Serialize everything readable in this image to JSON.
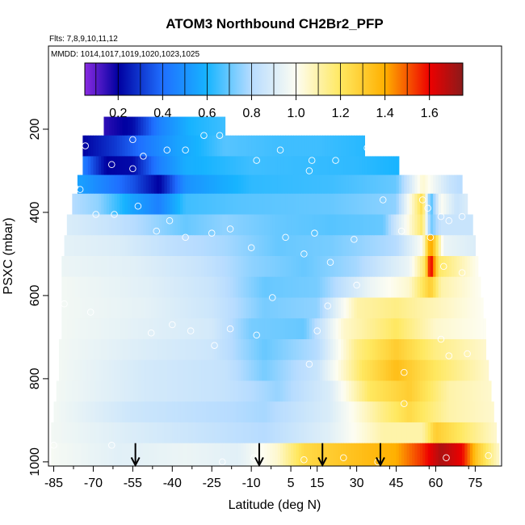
{
  "chart_data": {
    "type": "heatmap",
    "title": "ATOM3 Northbound CH2Br2_PFP",
    "flights_note": "Flts: 7,8,9,10,11,12",
    "dates_note": "MMDD: 1014,1017,1019,1020,1023,1025",
    "xlabel": "Latitude (deg N)",
    "ylabel": "PSXC (mbar)",
    "xlim": [
      -87,
      85
    ],
    "ylim": [
      1010,
      0
    ],
    "x_ticks": [
      -85,
      -70,
      -55,
      -40,
      -25,
      -10,
      5,
      15,
      30,
      45,
      60,
      75
    ],
    "x_tick_labels": [
      "-85",
      "-70",
      "-55",
      "-40",
      "-25",
      "-10",
      "5",
      "15",
      "30",
      "45",
      "60",
      "75"
    ],
    "y_ticks": [
      200,
      400,
      600,
      800,
      1000
    ],
    "y_tick_labels": [
      "200",
      "400",
      "600",
      "800",
      "1000"
    ],
    "colorbar": {
      "range": [
        0.05,
        1.75
      ],
      "ticks": [
        0.2,
        0.4,
        0.6,
        0.8,
        1.0,
        1.2,
        1.4,
        1.6
      ],
      "tick_labels": [
        "0.2",
        "0.4",
        "0.6",
        "0.8",
        "1.0",
        "1.2",
        "1.4",
        "1.6"
      ],
      "stops": [
        [
          0.05,
          "#8a2be2"
        ],
        [
          0.2,
          "#0000a0"
        ],
        [
          0.4,
          "#1f6fff"
        ],
        [
          0.6,
          "#17b4ff"
        ],
        [
          0.8,
          "#b7dcff"
        ],
        [
          1.0,
          "#fdfdf2"
        ],
        [
          1.2,
          "#ffe860"
        ],
        [
          1.4,
          "#ffb000"
        ],
        [
          1.6,
          "#ee0000"
        ],
        [
          1.75,
          "#8b1a1a"
        ]
      ]
    },
    "pressure_bins": [
      {
        "p_top": 170,
        "p_bot": 215,
        "lat_min": -66,
        "lat_max": -20,
        "nodes": [
          [
            -66,
            0.15
          ],
          [
            -55,
            0.22
          ],
          [
            -45,
            0.45
          ],
          [
            -33,
            0.6
          ],
          [
            -20,
            0.65
          ]
        ]
      },
      {
        "p_top": 215,
        "p_bot": 265,
        "lat_min": -74,
        "lat_max": 33,
        "nodes": [
          [
            -74,
            0.2
          ],
          [
            -62,
            0.3
          ],
          [
            -48,
            0.45
          ],
          [
            -38,
            0.55
          ],
          [
            -30,
            0.6
          ],
          [
            -20,
            0.68
          ],
          [
            0,
            0.65
          ],
          [
            15,
            0.65
          ],
          [
            33,
            0.62
          ]
        ]
      },
      {
        "p_top": 265,
        "p_bot": 310,
        "lat_min": -74,
        "lat_max": 46,
        "nodes": [
          [
            -74,
            0.45
          ],
          [
            -65,
            0.2
          ],
          [
            -55,
            0.22
          ],
          [
            -45,
            0.45
          ],
          [
            -35,
            0.58
          ],
          [
            -10,
            0.65
          ],
          [
            10,
            0.64
          ],
          [
            30,
            0.63
          ],
          [
            46,
            0.6
          ]
        ]
      },
      {
        "p_top": 310,
        "p_bot": 355,
        "lat_min": -76,
        "lat_max": 70,
        "nodes": [
          [
            -76,
            0.55
          ],
          [
            -65,
            0.45
          ],
          [
            -55,
            0.35
          ],
          [
            -45,
            0.2
          ],
          [
            -35,
            0.5
          ],
          [
            -10,
            0.63
          ],
          [
            20,
            0.65
          ],
          [
            45,
            0.7
          ],
          [
            55,
            1.05
          ],
          [
            60,
            0.95
          ],
          [
            65,
            0.85
          ],
          [
            70,
            0.8
          ]
        ]
      },
      {
        "p_top": 355,
        "p_bot": 405,
        "lat_min": -78,
        "lat_max": 72,
        "nodes": [
          [
            -78,
            0.8
          ],
          [
            -68,
            0.75
          ],
          [
            -55,
            0.55
          ],
          [
            -45,
            0.45
          ],
          [
            -35,
            0.65
          ],
          [
            -15,
            0.68
          ],
          [
            20,
            0.7
          ],
          [
            45,
            0.75
          ],
          [
            55,
            1.25
          ],
          [
            58,
            0.65
          ],
          [
            62,
            1.0
          ],
          [
            68,
            0.85
          ],
          [
            72,
            0.9
          ]
        ]
      },
      {
        "p_top": 405,
        "p_bot": 455,
        "lat_min": -80,
        "lat_max": 74,
        "nodes": [
          [
            -80,
            0.9
          ],
          [
            -65,
            0.85
          ],
          [
            -50,
            0.78
          ],
          [
            -35,
            0.7
          ],
          [
            -20,
            0.75
          ],
          [
            0,
            0.7
          ],
          [
            20,
            0.68
          ],
          [
            40,
            0.7
          ],
          [
            55,
            1.2
          ],
          [
            58,
            0.7
          ],
          [
            62,
            0.85
          ],
          [
            74,
            0.85
          ]
        ]
      },
      {
        "p_top": 455,
        "p_bot": 505,
        "lat_min": -81,
        "lat_max": 75,
        "nodes": [
          [
            -81,
            0.93
          ],
          [
            -60,
            0.9
          ],
          [
            -40,
            0.82
          ],
          [
            -20,
            0.78
          ],
          [
            0,
            0.7
          ],
          [
            20,
            0.72
          ],
          [
            45,
            0.8
          ],
          [
            55,
            1.0
          ],
          [
            58,
            1.45
          ],
          [
            63,
            0.95
          ],
          [
            75,
            0.9
          ]
        ]
      },
      {
        "p_top": 505,
        "p_bot": 555,
        "lat_min": -82,
        "lat_max": 76,
        "nodes": [
          [
            -82,
            0.95
          ],
          [
            -55,
            0.92
          ],
          [
            -30,
            0.85
          ],
          [
            -10,
            0.75
          ],
          [
            10,
            0.7
          ],
          [
            30,
            0.78
          ],
          [
            50,
            0.95
          ],
          [
            56,
            1.2
          ],
          [
            58,
            1.65
          ],
          [
            61,
            1.2
          ],
          [
            76,
            1.0
          ]
        ]
      },
      {
        "p_top": 555,
        "p_bot": 605,
        "lat_min": -82,
        "lat_max": 77,
        "nodes": [
          [
            -82,
            0.97
          ],
          [
            -50,
            0.92
          ],
          [
            -25,
            0.85
          ],
          [
            -5,
            0.7
          ],
          [
            15,
            0.72
          ],
          [
            35,
            0.95
          ],
          [
            50,
            1.05
          ],
          [
            58,
            1.3
          ],
          [
            62,
            1.1
          ],
          [
            77,
            1.0
          ]
        ]
      },
      {
        "p_top": 605,
        "p_bot": 655,
        "lat_min": -82,
        "lat_max": 78,
        "nodes": [
          [
            -82,
            0.97
          ],
          [
            -50,
            0.93
          ],
          [
            -25,
            0.86
          ],
          [
            -5,
            0.72
          ],
          [
            15,
            0.75
          ],
          [
            30,
            1.1
          ],
          [
            45,
            1.15
          ],
          [
            55,
            1.1
          ],
          [
            78,
            1.0
          ]
        ]
      },
      {
        "p_top": 655,
        "p_bot": 705,
        "lat_min": -82,
        "lat_max": 79,
        "nodes": [
          [
            -82,
            0.97
          ],
          [
            -50,
            0.92
          ],
          [
            -25,
            0.88
          ],
          [
            -10,
            0.72
          ],
          [
            10,
            0.7
          ],
          [
            25,
            1.05
          ],
          [
            45,
            1.2
          ],
          [
            60,
            1.05
          ],
          [
            79,
            1.0
          ]
        ]
      },
      {
        "p_top": 705,
        "p_bot": 755,
        "lat_min": -83,
        "lat_max": 79,
        "nodes": [
          [
            -83,
            0.97
          ],
          [
            -50,
            0.9
          ],
          [
            -25,
            0.86
          ],
          [
            -5,
            0.7
          ],
          [
            15,
            0.8
          ],
          [
            30,
            1.15
          ],
          [
            45,
            1.3
          ],
          [
            60,
            1.15
          ],
          [
            79,
            1.05
          ]
        ]
      },
      {
        "p_top": 755,
        "p_bot": 805,
        "lat_min": -83,
        "lat_max": 80,
        "nodes": [
          [
            -83,
            0.97
          ],
          [
            -50,
            0.88
          ],
          [
            -20,
            0.84
          ],
          [
            -5,
            0.72
          ],
          [
            15,
            0.85
          ],
          [
            32,
            1.2
          ],
          [
            45,
            1.35
          ],
          [
            60,
            1.2
          ],
          [
            80,
            1.05
          ]
        ]
      },
      {
        "p_top": 805,
        "p_bot": 855,
        "lat_min": -84,
        "lat_max": 81,
        "nodes": [
          [
            -84,
            0.97
          ],
          [
            -50,
            0.88
          ],
          [
            -20,
            0.84
          ],
          [
            0,
            0.76
          ],
          [
            20,
            0.9
          ],
          [
            35,
            1.2
          ],
          [
            50,
            1.3
          ],
          [
            65,
            1.1
          ],
          [
            81,
            1.05
          ]
        ]
      },
      {
        "p_top": 855,
        "p_bot": 905,
        "lat_min": -85,
        "lat_max": 82,
        "nodes": [
          [
            -85,
            0.97
          ],
          [
            -55,
            0.86
          ],
          [
            -30,
            0.82
          ],
          [
            -5,
            0.78
          ],
          [
            20,
            0.9
          ],
          [
            40,
            1.15
          ],
          [
            50,
            1.25
          ],
          [
            65,
            1.1
          ],
          [
            82,
            1.05
          ]
        ]
      },
      {
        "p_top": 905,
        "p_bot": 955,
        "lat_min": -86,
        "lat_max": 83,
        "nodes": [
          [
            -86,
            0.97
          ],
          [
            -55,
            0.9
          ],
          [
            -30,
            0.85
          ],
          [
            -5,
            0.8
          ],
          [
            20,
            0.92
          ],
          [
            40,
            1.1
          ],
          [
            55,
            1.1
          ],
          [
            60,
            1.3
          ],
          [
            83,
            1.05
          ]
        ]
      },
      {
        "p_top": 955,
        "p_bot": 1010,
        "lat_min": -86,
        "lat_max": 84,
        "nodes": [
          [
            -86,
            0.98
          ],
          [
            -60,
            0.92
          ],
          [
            -35,
            0.95
          ],
          [
            -15,
            0.92
          ],
          [
            0,
            1.05
          ],
          [
            10,
            1.25
          ],
          [
            20,
            1.3
          ],
          [
            32,
            1.35
          ],
          [
            45,
            1.4
          ],
          [
            55,
            1.55
          ],
          [
            62,
            1.7
          ],
          [
            70,
            1.6
          ],
          [
            76,
            1.3
          ],
          [
            84,
            1.05
          ]
        ]
      }
    ],
    "samples": [
      [
        -55,
        225
      ],
      [
        -42,
        250
      ],
      [
        -35,
        250
      ],
      [
        -28,
        215
      ],
      [
        -22,
        215
      ],
      [
        -14,
        195
      ],
      [
        -73,
        240
      ],
      [
        -63,
        285
      ],
      [
        -55,
        295
      ],
      [
        -51,
        265
      ],
      [
        -8,
        275
      ],
      [
        1,
        250
      ],
      [
        13,
        275
      ],
      [
        12,
        300
      ],
      [
        22,
        275
      ],
      [
        34,
        245
      ],
      [
        -77,
        340
      ],
      [
        -75,
        345
      ],
      [
        -69,
        405
      ],
      [
        -62,
        405
      ],
      [
        -53,
        385
      ],
      [
        -46,
        445
      ],
      [
        -41,
        420
      ],
      [
        -35,
        460
      ],
      [
        -25,
        450
      ],
      [
        -18,
        440
      ],
      [
        -10,
        485
      ],
      [
        3,
        460
      ],
      [
        10,
        500
      ],
      [
        14,
        450
      ],
      [
        20,
        520
      ],
      [
        29,
        465
      ],
      [
        40,
        370
      ],
      [
        47,
        445
      ],
      [
        57,
        390
      ],
      [
        58,
        460
      ],
      [
        62,
        410
      ],
      [
        65,
        420
      ],
      [
        70,
        410
      ],
      [
        55,
        370
      ],
      [
        63,
        530
      ],
      [
        70,
        545
      ],
      [
        -81,
        620
      ],
      [
        -71,
        640
      ],
      [
        -48,
        690
      ],
      [
        -40,
        670
      ],
      [
        -33,
        685
      ],
      [
        -24,
        720
      ],
      [
        -18,
        680
      ],
      [
        -8,
        695
      ],
      [
        -2,
        605
      ],
      [
        19,
        625
      ],
      [
        15,
        685
      ],
      [
        30,
        575
      ],
      [
        12,
        765
      ],
      [
        48,
        785
      ],
      [
        62,
        705
      ],
      [
        65,
        745
      ],
      [
        72,
        740
      ],
      [
        48,
        860
      ],
      [
        -85,
        960
      ],
      [
        -63,
        960
      ],
      [
        -21,
        1000
      ],
      [
        -9,
        990
      ],
      [
        10,
        995
      ],
      [
        25,
        990
      ],
      [
        38,
        1000
      ],
      [
        64,
        990
      ],
      [
        80,
        985
      ]
    ],
    "arrows": [
      -54,
      -7,
      17,
      39
    ]
  }
}
